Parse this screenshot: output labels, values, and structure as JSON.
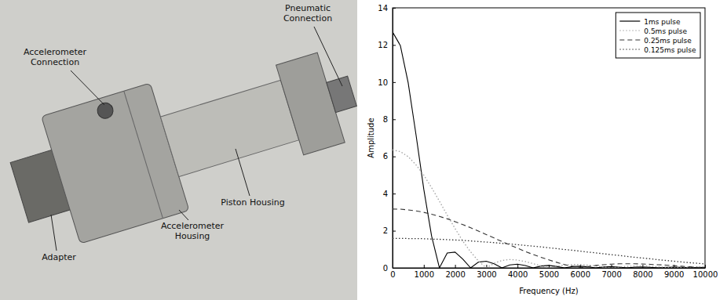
{
  "chart_data": {
    "type": "line",
    "xlabel": "Frequency (Hz)",
    "ylabel": "Amplitude",
    "x": [
      0,
      250,
      500,
      750,
      1000,
      1250,
      1500,
      1750,
      2000,
      2250,
      2500,
      2750,
      3000,
      3250,
      3500,
      3750,
      4000,
      4250,
      4500,
      4750,
      5000,
      5250,
      5500,
      5750,
      6000,
      6250,
      6500,
      6750,
      7000,
      7250,
      7500,
      7750,
      8000,
      8250,
      8500,
      8750,
      9000,
      9250,
      9500,
      9750,
      10000
    ],
    "series": [
      {
        "name": "1ms pulse",
        "color": "#000000",
        "line_style": "solid",
        "values": [
          12.7,
          11.97,
          9.97,
          7.18,
          4.23,
          1.71,
          0,
          0.8,
          0.85,
          0.47,
          0,
          0.31,
          0.36,
          0.22,
          0,
          0.16,
          0.2,
          0.13,
          0,
          0.1,
          0.13,
          0.08,
          0,
          0.07,
          0.09,
          0.06,
          0,
          0.05,
          0.07,
          0.04,
          0,
          0.04,
          0.05,
          0.03,
          0,
          0.03,
          0.04,
          0.03,
          0,
          0.02,
          0.03
        ]
      },
      {
        "name": "0.5ms pulse",
        "color": "#a0a0a0",
        "line_style": "dotted",
        "values": [
          6.35,
          6.26,
          5.99,
          5.55,
          4.99,
          4.32,
          3.59,
          2.84,
          2.12,
          1.44,
          0.86,
          0.37,
          0,
          0.25,
          0.4,
          0.45,
          0.42,
          0.34,
          0.23,
          0.11,
          0,
          0.09,
          0.15,
          0.18,
          0.18,
          0.15,
          0.11,
          0.05,
          0,
          0.05,
          0.08,
          0.1,
          0.1,
          0.09,
          0.06,
          0.03,
          0,
          0.03,
          0.05,
          0.06,
          0.06
        ]
      },
      {
        "name": "0.25ms pulse",
        "color": "#333333",
        "line_style": "dashed",
        "values": [
          3.17,
          3.16,
          3.12,
          3.07,
          2.99,
          2.89,
          2.77,
          2.64,
          2.49,
          2.33,
          2.16,
          1.98,
          1.79,
          1.61,
          1.42,
          1.24,
          1.06,
          0.88,
          0.72,
          0.57,
          0.43,
          0.3,
          0.18,
          0.09,
          0,
          0.07,
          0.13,
          0.17,
          0.2,
          0.22,
          0.22,
          0.22,
          0.21,
          0.19,
          0.17,
          0.15,
          0.12,
          0.09,
          0.06,
          0.03,
          0
        ]
      },
      {
        "name": "0.125ms pulse",
        "color": "#333333",
        "line_style": "dotted",
        "values": [
          1.59,
          1.59,
          1.58,
          1.58,
          1.57,
          1.55,
          1.54,
          1.52,
          1.5,
          1.48,
          1.45,
          1.42,
          1.39,
          1.36,
          1.32,
          1.29,
          1.25,
          1.21,
          1.17,
          1.13,
          1.08,
          1.04,
          0.99,
          0.95,
          0.9,
          0.85,
          0.81,
          0.76,
          0.71,
          0.67,
          0.62,
          0.57,
          0.53,
          0.49,
          0.44,
          0.4,
          0.36,
          0.32,
          0.28,
          0.25,
          0.21
        ]
      }
    ],
    "xlim": [
      0,
      10000
    ],
    "xticks": [
      0,
      1000,
      2000,
      3000,
      4000,
      5000,
      6000,
      7000,
      8000,
      9000,
      10000
    ],
    "ylim": [
      0,
      14
    ],
    "yticks": [
      0,
      2,
      4,
      6,
      8,
      10,
      12,
      14
    ],
    "grid": false,
    "legend": "upper right"
  },
  "figure_labels": [
    "Pneumatic Connection",
    "Accelerometer Connection",
    "Piston Housing",
    "Accelerometer Housing",
    "Adapter"
  ]
}
